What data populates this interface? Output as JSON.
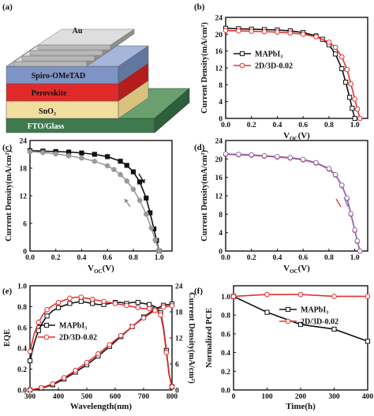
{
  "panel_labels": [
    "(a)",
    "(b)",
    "(c)",
    "(d)",
    "(e)",
    "(f)"
  ],
  "device_stack": {
    "layers": [
      {
        "name": "FTO/Glass",
        "face": "#3e7a4e",
        "top": "#6aa070",
        "side": "#2f5e3b"
      },
      {
        "name": "SnO₂",
        "face": "#f2dfa0",
        "top": "#f7ecc4",
        "side": "#d8c27e"
      },
      {
        "name": "Perovskite",
        "face": "#e02a2a",
        "top": "#ef6a6a",
        "side": "#b51c1c"
      },
      {
        "name": "Spiro-OMeTAD",
        "face": "#7e94c4",
        "top": "#a6b6da",
        "side": "#61779f"
      },
      {
        "name": "Au",
        "face": "#b8b8b8",
        "top": "#dedede",
        "side": "#8e8e8e"
      }
    ]
  },
  "chart_data": [
    {
      "id": "b",
      "type": "line",
      "xlabel": "V_OC(V)",
      "ylabel": "Current Density(mA/cm²)",
      "xlim": [
        0.0,
        1.1
      ],
      "ylim": [
        0,
        24
      ],
      "xticks": [
        0.0,
        0.2,
        0.4,
        0.6,
        0.8,
        1.0
      ],
      "yticks": [
        0,
        4,
        8,
        12,
        16,
        20,
        24
      ],
      "legend_position": "center-left",
      "series": [
        {
          "name": "MAPbI₃",
          "color": "#111111",
          "marker": "square",
          "x": [
            0.0,
            0.1,
            0.2,
            0.3,
            0.4,
            0.5,
            0.6,
            0.7,
            0.75,
            0.8,
            0.85,
            0.9,
            0.93,
            0.96,
            0.98,
            1.0
          ],
          "y": [
            21.4,
            21.3,
            21.2,
            21.1,
            21.0,
            20.8,
            20.4,
            19.6,
            18.8,
            17.5,
            15.3,
            11.8,
            8.6,
            5.0,
            2.4,
            0.0
          ]
        },
        {
          "name": "2D/3D-0.02",
          "color": "#e53030",
          "marker": "circle",
          "x": [
            0.0,
            0.1,
            0.2,
            0.3,
            0.4,
            0.5,
            0.6,
            0.7,
            0.8,
            0.85,
            0.9,
            0.94,
            0.97,
            1.0,
            1.02,
            1.04
          ],
          "y": [
            20.9,
            20.8,
            20.7,
            20.6,
            20.5,
            20.3,
            20.0,
            19.4,
            18.1,
            16.9,
            14.6,
            11.6,
            8.2,
            4.6,
            2.2,
            0.0
          ]
        }
      ]
    },
    {
      "id": "c",
      "type": "line",
      "xlabel": "V_OC(V)",
      "ylabel": "Current Density(mA/cm²)",
      "xlim": [
        0.0,
        1.1
      ],
      "ylim": [
        0,
        24
      ],
      "xticks": [
        0.0,
        0.2,
        0.4,
        0.6,
        0.8,
        1.0
      ],
      "yticks": [
        0,
        6,
        12,
        18,
        24
      ],
      "series": [
        {
          "color": "#111111",
          "marker": "square",
          "x": [
            0.0,
            0.1,
            0.2,
            0.3,
            0.4,
            0.5,
            0.6,
            0.7,
            0.75,
            0.8,
            0.85,
            0.9,
            0.93,
            0.96,
            0.98,
            1.0
          ],
          "y": [
            21.8,
            21.7,
            21.6,
            21.5,
            21.3,
            21.0,
            20.5,
            19.5,
            18.6,
            17.2,
            15.0,
            11.5,
            8.3,
            4.8,
            2.3,
            0.0
          ]
        },
        {
          "color": "#9a9a9a",
          "marker": "circle",
          "x": [
            0.0,
            0.1,
            0.2,
            0.3,
            0.4,
            0.5,
            0.6,
            0.65,
            0.7,
            0.75,
            0.8,
            0.85,
            0.9,
            0.94,
            0.97,
            1.0
          ],
          "y": [
            21.6,
            21.4,
            21.1,
            20.7,
            20.2,
            19.5,
            18.5,
            17.7,
            16.6,
            15.2,
            13.4,
            11.0,
            8.0,
            5.0,
            2.4,
            0.0
          ]
        }
      ]
    },
    {
      "id": "d",
      "type": "line",
      "xlabel": "V_OC(V)",
      "ylabel": "Current Density(mA/cm²)",
      "xlim": [
        0.0,
        1.1
      ],
      "ylim": [
        0,
        24
      ],
      "xticks": [
        0.0,
        0.2,
        0.4,
        0.6,
        0.8,
        1.0
      ],
      "xtick_labels": [
        "0.0",
        "0.2",
        "0.4",
        "0.6",
        "0.8",
        "1.0"
      ],
      "yticks": [
        0,
        4,
        8,
        12,
        16,
        20,
        24
      ],
      "series": [
        {
          "color": "#e53030",
          "marker": "circle",
          "x": [
            0.0,
            0.1,
            0.2,
            0.3,
            0.4,
            0.5,
            0.6,
            0.7,
            0.8,
            0.85,
            0.9,
            0.94,
            0.97,
            1.0,
            1.02,
            1.04
          ],
          "y": [
            21.0,
            20.9,
            20.8,
            20.6,
            20.4,
            20.2,
            19.8,
            19.1,
            17.8,
            16.5,
            14.2,
            11.4,
            8.0,
            4.5,
            2.1,
            0.0
          ]
        },
        {
          "color": "#8b6fb8",
          "marker": "circle",
          "x": [
            0.0,
            0.1,
            0.2,
            0.3,
            0.4,
            0.5,
            0.6,
            0.7,
            0.8,
            0.85,
            0.9,
            0.94,
            0.97,
            1.0,
            1.02,
            1.04
          ],
          "y": [
            21.1,
            21.0,
            20.9,
            20.7,
            20.5,
            20.3,
            19.9,
            19.2,
            17.9,
            16.6,
            14.3,
            11.5,
            8.1,
            4.6,
            2.2,
            0.0
          ]
        }
      ]
    },
    {
      "id": "e",
      "type": "line",
      "xlabel": "Wavelength(nm)",
      "ylabel_left": "EQE",
      "ylabel_right": "Current Density(mA/cm²)",
      "xlim": [
        300,
        800
      ],
      "ylim_left": [
        0.0,
        1.0
      ],
      "ylim_right": [
        0,
        24
      ],
      "xticks": [
        300,
        400,
        500,
        600,
        700,
        800
      ],
      "yticks_left": [
        0.0,
        0.2,
        0.4,
        0.6,
        0.8,
        1.0
      ],
      "yticks_right": [
        0,
        6,
        12,
        18,
        24
      ],
      "legend_position": "center-left",
      "series": [
        {
          "name": "MAPbI₃",
          "color": "#111111",
          "marker": "square",
          "axis": "left",
          "x": [
            300,
            315,
            330,
            345,
            360,
            380,
            400,
            420,
            440,
            460,
            480,
            500,
            520,
            540,
            560,
            580,
            600,
            620,
            640,
            660,
            680,
            700,
            720,
            740,
            760,
            770,
            780,
            790,
            800
          ],
          "y": [
            0.28,
            0.45,
            0.57,
            0.65,
            0.71,
            0.76,
            0.79,
            0.81,
            0.83,
            0.84,
            0.85,
            0.84,
            0.83,
            0.82,
            0.82,
            0.83,
            0.84,
            0.84,
            0.83,
            0.84,
            0.84,
            0.83,
            0.82,
            0.8,
            0.74,
            0.6,
            0.38,
            0.15,
            0.03
          ]
        },
        {
          "name": "2D/3D-0.02",
          "color": "#e53030",
          "marker": "circle",
          "axis": "left",
          "x": [
            300,
            315,
            330,
            345,
            360,
            380,
            400,
            420,
            440,
            460,
            480,
            500,
            520,
            540,
            560,
            580,
            600,
            620,
            640,
            660,
            680,
            700,
            720,
            740,
            760,
            770,
            780,
            790,
            800
          ],
          "y": [
            0.37,
            0.54,
            0.65,
            0.72,
            0.77,
            0.81,
            0.84,
            0.86,
            0.88,
            0.89,
            0.89,
            0.88,
            0.87,
            0.86,
            0.85,
            0.84,
            0.83,
            0.82,
            0.81,
            0.8,
            0.79,
            0.78,
            0.78,
            0.77,
            0.72,
            0.58,
            0.36,
            0.14,
            0.03
          ]
        },
        {
          "color": "#111111",
          "marker": "square",
          "axis": "right",
          "x": [
            300,
            340,
            380,
            420,
            460,
            500,
            540,
            580,
            620,
            660,
            700,
            740,
            770,
            800
          ],
          "y": [
            0.0,
            0.4,
            1.2,
            2.5,
            4.1,
            5.8,
            7.8,
            10.0,
            12.3,
            14.6,
            16.8,
            18.6,
            19.5,
            19.8
          ]
        },
        {
          "color": "#e53030",
          "marker": "circle",
          "axis": "right",
          "x": [
            300,
            340,
            380,
            420,
            460,
            500,
            540,
            580,
            620,
            660,
            700,
            740,
            770,
            800
          ],
          "y": [
            0.0,
            0.5,
            1.4,
            2.8,
            4.5,
            6.3,
            8.3,
            10.4,
            12.5,
            14.6,
            16.6,
            18.3,
            19.1,
            19.4
          ]
        }
      ]
    },
    {
      "id": "f",
      "type": "line",
      "xlabel": "Time(h)",
      "ylabel": "Normalized PCE",
      "xlim": [
        0,
        400
      ],
      "ylim": [
        0.0,
        1.0
      ],
      "xticks": [
        0,
        100,
        200,
        300,
        400
      ],
      "yticks": [
        0.0,
        0.2,
        0.4,
        0.6,
        0.8,
        1.0
      ],
      "legend_position": "center-right",
      "series": [
        {
          "name": "MAPbI₃",
          "color": "#111111",
          "marker": "square",
          "x": [
            0,
            100,
            200,
            300,
            400
          ],
          "y": [
            1.0,
            0.83,
            0.7,
            0.65,
            0.52
          ]
        },
        {
          "name": "2D/3D-0.02",
          "color": "#e53030",
          "marker": "circle",
          "x": [
            0,
            100,
            200,
            300,
            400
          ],
          "y": [
            1.0,
            1.02,
            1.02,
            1.0,
            1.0
          ]
        }
      ]
    }
  ]
}
